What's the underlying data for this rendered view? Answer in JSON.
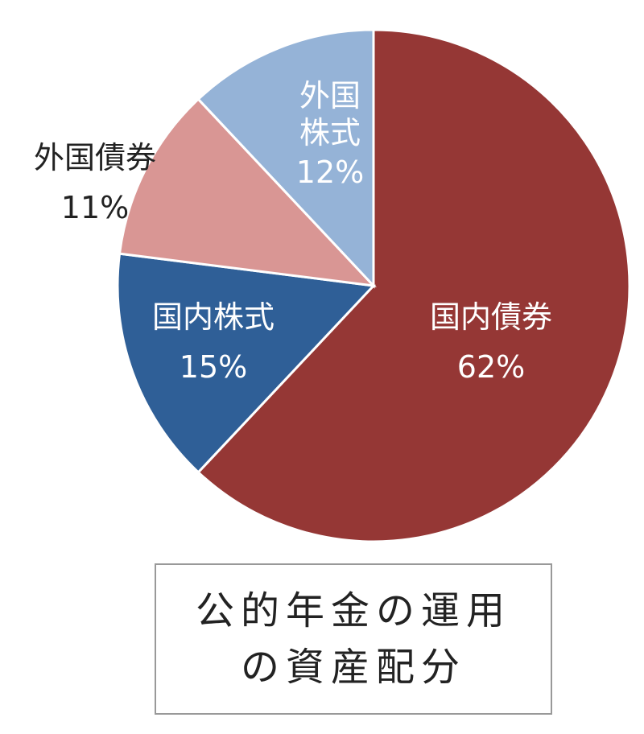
{
  "chart_data": {
    "type": "pie",
    "title": "公的年金の運用の資産配分",
    "categories": [
      "国内債券",
      "国内株式",
      "外国債券",
      "外国株式"
    ],
    "values": [
      62,
      15,
      11,
      12
    ],
    "value_labels": [
      "62%",
      "15%",
      "11%",
      "12%"
    ],
    "colors": [
      "#953735",
      "#2f5f97",
      "#d99694",
      "#95b3d7"
    ]
  }
}
